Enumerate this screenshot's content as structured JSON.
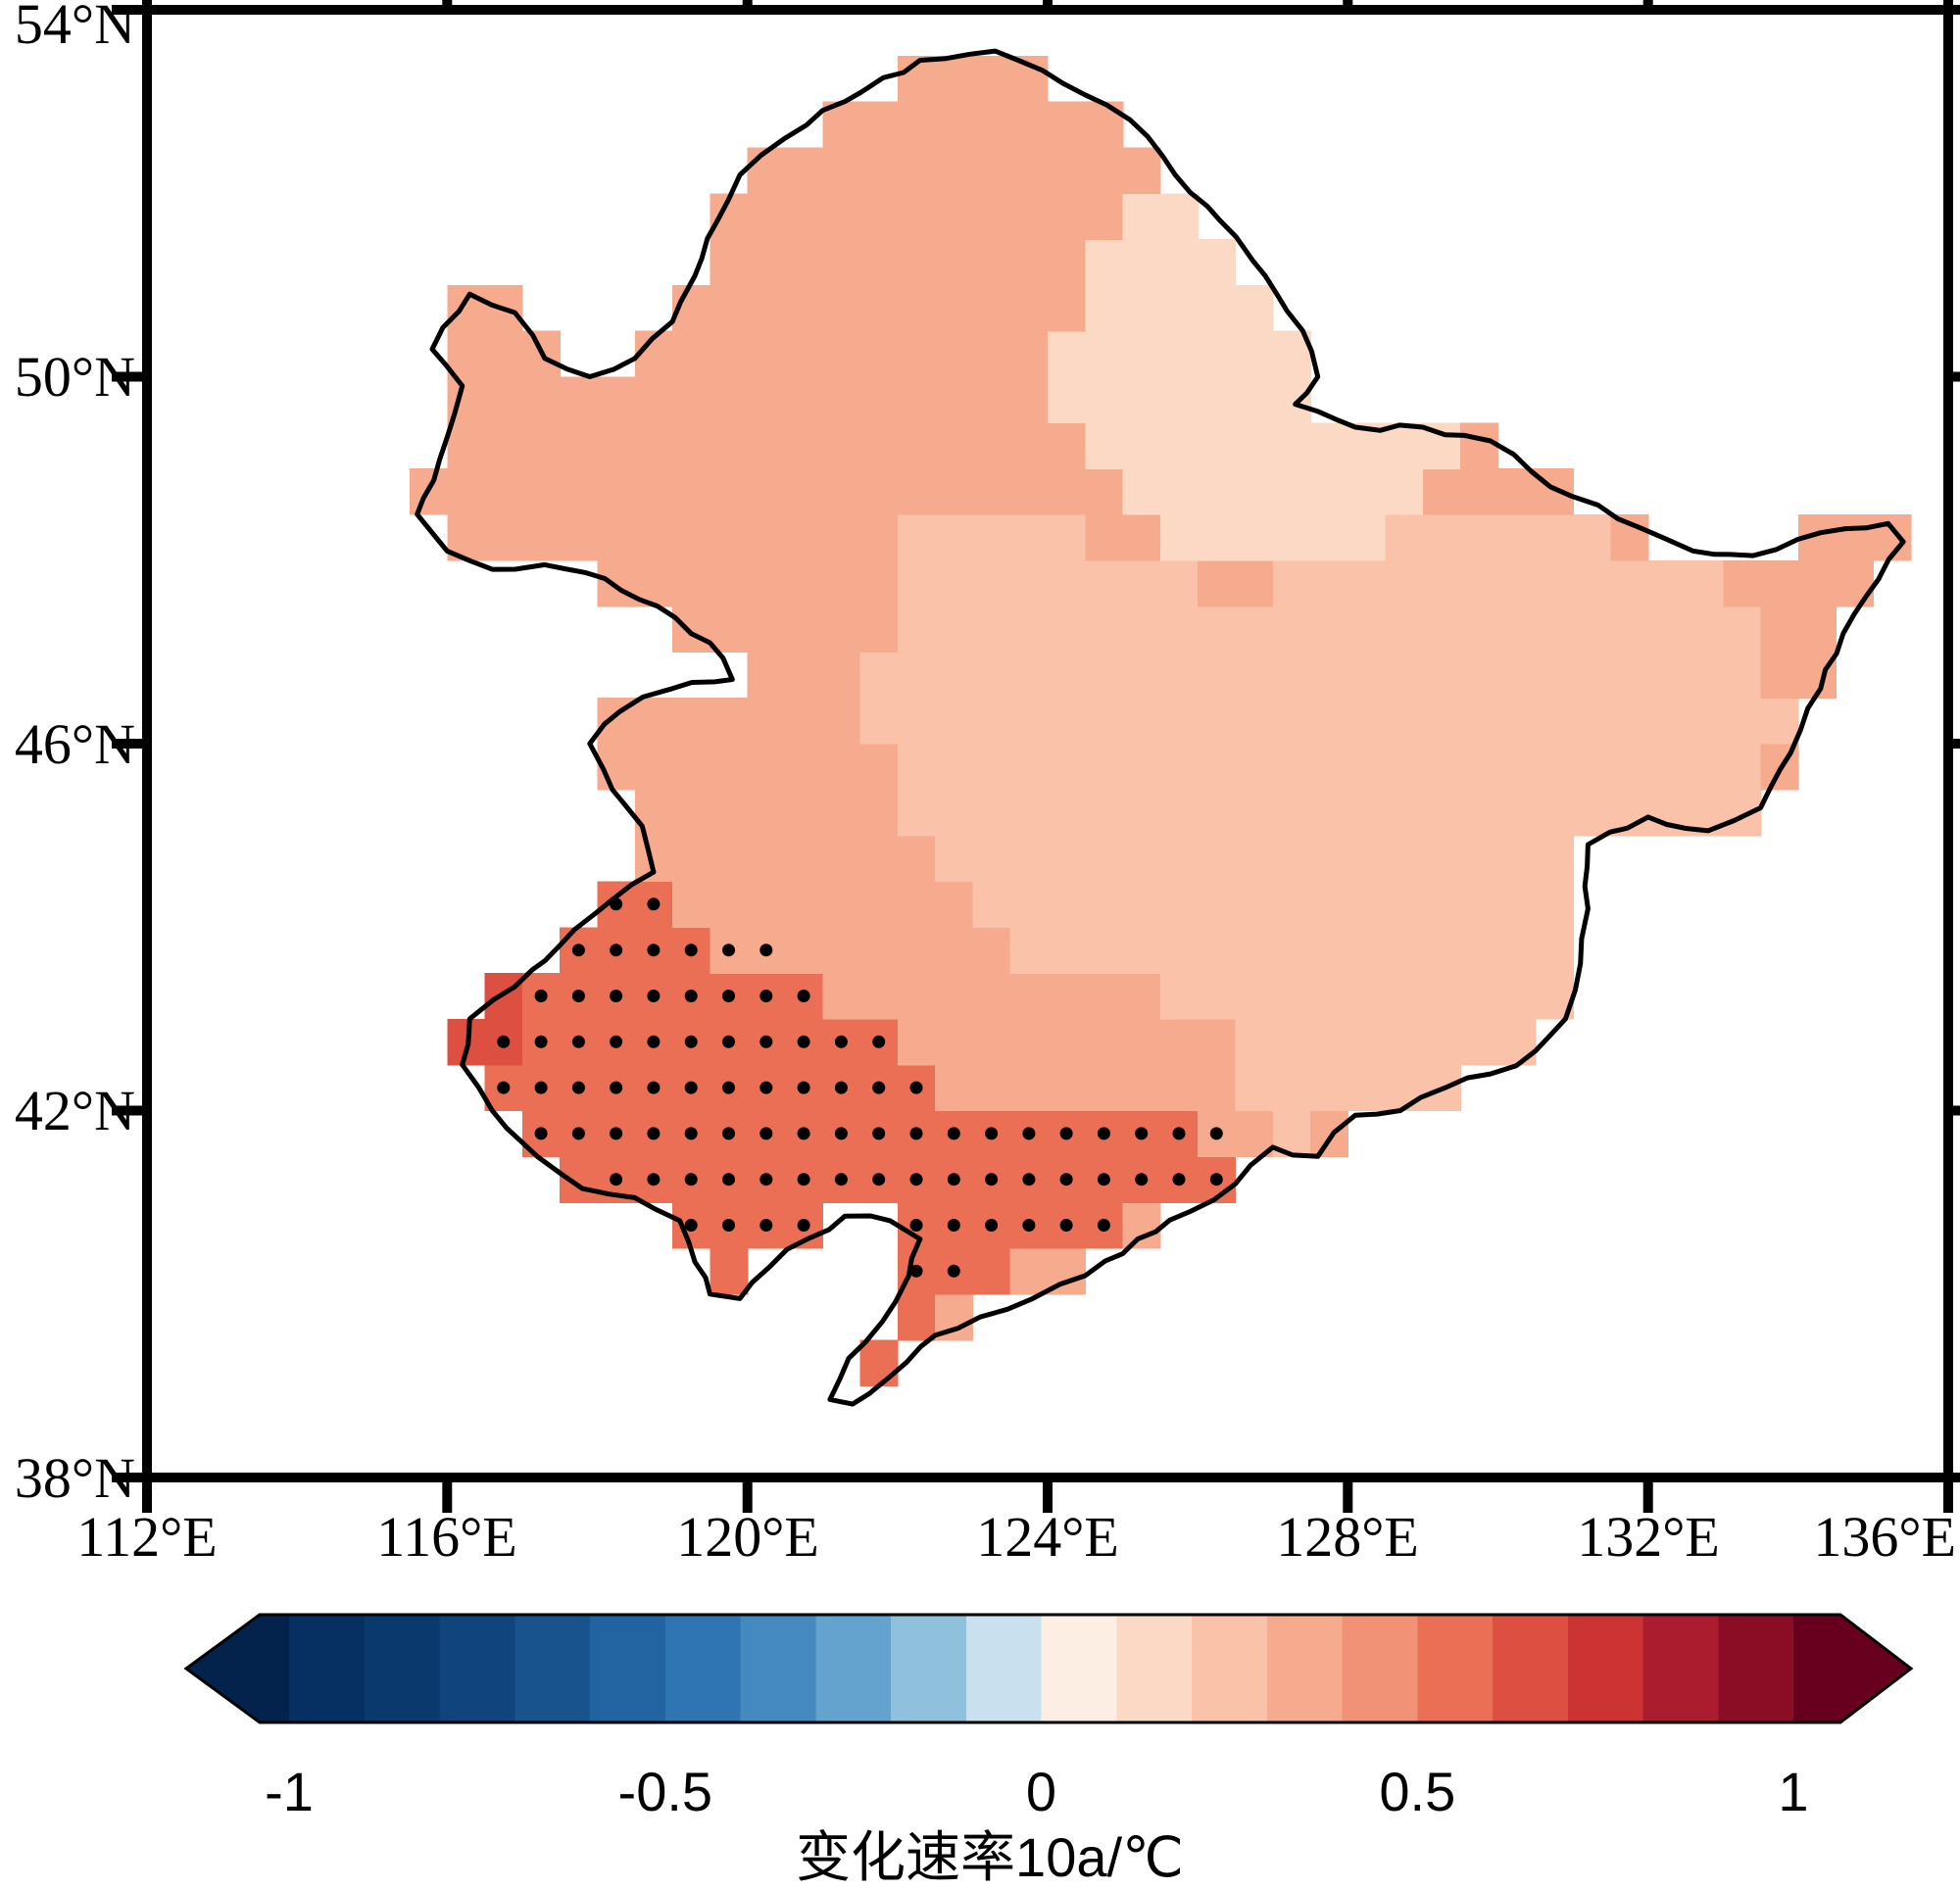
{
  "axes": {
    "lat_ticks": [
      {
        "value": 54,
        "label": "54°N"
      },
      {
        "value": 50,
        "label": "50°N"
      },
      {
        "value": 46,
        "label": "46°N"
      },
      {
        "value": 42,
        "label": "42°N"
      },
      {
        "value": 38,
        "label": "38°N"
      }
    ],
    "lon_ticks": [
      {
        "value": 112,
        "label": "112°E"
      },
      {
        "value": 116,
        "label": "116°E"
      },
      {
        "value": 120,
        "label": "120°E"
      },
      {
        "value": 124,
        "label": "124°E"
      },
      {
        "value": 128,
        "label": "128°E"
      },
      {
        "value": 132,
        "label": "132°E"
      },
      {
        "value": 136,
        "label": "136°E"
      }
    ]
  },
  "colorbar": {
    "label": "变化速率10a/℃",
    "ticks": [
      "-1",
      "-0.5",
      "0",
      "0.5",
      "1"
    ],
    "tick_values": [
      -1,
      -0.5,
      0,
      0.5,
      1
    ],
    "vmin": -1,
    "vmax": 1,
    "under_color": "#03234c",
    "over_color": "#67001f",
    "colors": [
      "#053061",
      "#09396d",
      "#10447c",
      "#18538e",
      "#2263a1",
      "#2f74b3",
      "#4489c0",
      "#63a3ce",
      "#8fc1dd",
      "#c9e1ee",
      "#fdeee4",
      "#fcd9c5",
      "#f9c2a9",
      "#f6aa8e",
      "#f19175",
      "#ea6f55",
      "#dd4f40",
      "#cb3232",
      "#ab1d2e",
      "#8a0c25"
    ]
  },
  "chart_data": {
    "type": "heatmap",
    "variable_label": "变化速率10a/℃",
    "lon_range": [
      112,
      136
    ],
    "lat_range": [
      38,
      54
    ],
    "grid_resolution_deg": 0.5,
    "base_value": 0.38,
    "region_boundary_lonlat": [
      [
        115.6,
        48.5
      ],
      [
        115.9,
        49.1
      ],
      [
        116.1,
        49.6
      ],
      [
        116.2,
        49.9
      ],
      [
        115.8,
        50.3
      ],
      [
        116.3,
        50.9
      ],
      [
        116.9,
        50.7
      ],
      [
        117.3,
        50.2
      ],
      [
        117.9,
        50.0
      ],
      [
        118.5,
        50.2
      ],
      [
        119.0,
        50.6
      ],
      [
        119.3,
        51.1
      ],
      [
        119.6,
        51.7
      ],
      [
        119.9,
        52.2
      ],
      [
        120.5,
        52.6
      ],
      [
        121.3,
        53.0
      ],
      [
        122.3,
        53.45
      ],
      [
        123.3,
        53.55
      ],
      [
        124.2,
        53.2
      ],
      [
        125.1,
        52.8
      ],
      [
        125.7,
        52.2
      ],
      [
        126.3,
        51.7
      ],
      [
        126.9,
        51.1
      ],
      [
        127.4,
        50.5
      ],
      [
        127.6,
        50.0
      ],
      [
        127.3,
        49.7
      ],
      [
        128.1,
        49.45
      ],
      [
        129.0,
        49.45
      ],
      [
        129.9,
        49.3
      ],
      [
        130.7,
        48.8
      ],
      [
        131.6,
        48.45
      ],
      [
        132.6,
        48.1
      ],
      [
        133.4,
        48.05
      ],
      [
        134.3,
        48.3
      ],
      [
        135.2,
        48.4
      ],
      [
        135.4,
        48.2
      ],
      [
        134.9,
        47.6
      ],
      [
        134.6,
        47.2
      ],
      [
        134.3,
        46.6
      ],
      [
        133.9,
        45.9
      ],
      [
        133.5,
        45.3
      ],
      [
        132.8,
        45.05
      ],
      [
        132.0,
        45.2
      ],
      [
        131.2,
        44.9
      ],
      [
        131.2,
        44.2
      ],
      [
        131.1,
        43.6
      ],
      [
        130.9,
        43.0
      ],
      [
        130.5,
        42.65
      ],
      [
        129.9,
        42.4
      ],
      [
        129.3,
        42.25
      ],
      [
        128.7,
        42.0
      ],
      [
        128.1,
        41.95
      ],
      [
        127.6,
        41.5
      ],
      [
        127.0,
        41.6
      ],
      [
        126.5,
        41.2
      ],
      [
        125.9,
        40.9
      ],
      [
        125.2,
        40.6
      ],
      [
        124.5,
        40.2
      ],
      [
        123.8,
        39.95
      ],
      [
        123.1,
        39.75
      ],
      [
        122.5,
        39.55
      ],
      [
        121.9,
        39.1
      ],
      [
        121.4,
        38.8
      ],
      [
        121.1,
        38.85
      ],
      [
        121.35,
        39.3
      ],
      [
        121.8,
        39.7
      ],
      [
        122.15,
        40.2
      ],
      [
        122.3,
        40.6
      ],
      [
        121.9,
        40.8
      ],
      [
        121.3,
        40.85
      ],
      [
        120.8,
        40.6
      ],
      [
        120.3,
        40.3
      ],
      [
        119.9,
        39.95
      ],
      [
        119.5,
        40.0
      ],
      [
        119.3,
        40.35
      ],
      [
        119.1,
        40.8
      ],
      [
        118.5,
        41.05
      ],
      [
        117.8,
        41.15
      ],
      [
        117.2,
        41.5
      ],
      [
        116.6,
        42.0
      ],
      [
        116.2,
        42.5
      ],
      [
        116.3,
        43.0
      ],
      [
        116.9,
        43.35
      ],
      [
        117.5,
        43.8
      ],
      [
        118.2,
        44.3
      ],
      [
        118.75,
        44.6
      ],
      [
        118.6,
        45.1
      ],
      [
        118.2,
        45.5
      ],
      [
        117.9,
        46.0
      ],
      [
        118.3,
        46.35
      ],
      [
        119.0,
        46.6
      ],
      [
        119.8,
        46.7
      ],
      [
        119.5,
        47.1
      ],
      [
        118.8,
        47.5
      ],
      [
        118.1,
        47.8
      ],
      [
        117.3,
        47.95
      ],
      [
        116.6,
        47.9
      ],
      [
        116.0,
        48.1
      ]
    ],
    "zones": [
      {
        "name": "east-lighter",
        "value": 0.28,
        "polygon": [
          [
            122.5,
            48.6
          ],
          [
            124.0,
            48.4
          ],
          [
            125.0,
            48.0
          ],
          [
            126.4,
            47.7
          ],
          [
            127.9,
            47.9
          ],
          [
            129.2,
            48.6
          ],
          [
            130.3,
            48.6
          ],
          [
            131.5,
            48.2
          ],
          [
            133.0,
            47.9
          ],
          [
            133.6,
            47.0
          ],
          [
            133.9,
            46.0
          ],
          [
            133.3,
            45.1
          ],
          [
            132.0,
            45.1
          ],
          [
            131.1,
            44.8
          ],
          [
            131.1,
            43.6
          ],
          [
            130.8,
            42.9
          ],
          [
            129.9,
            42.5
          ],
          [
            128.9,
            42.1
          ],
          [
            128.0,
            42.0
          ],
          [
            127.5,
            41.6
          ],
          [
            126.9,
            41.7
          ],
          [
            126.6,
            42.2
          ],
          [
            126.3,
            43.0
          ],
          [
            125.4,
            43.4
          ],
          [
            124.4,
            43.3
          ],
          [
            123.5,
            43.6
          ],
          [
            123.0,
            44.3
          ],
          [
            122.4,
            44.7
          ],
          [
            122.0,
            45.5
          ],
          [
            121.6,
            46.3
          ],
          [
            121.8,
            47.2
          ],
          [
            122.0,
            48.0
          ]
        ]
      },
      {
        "name": "north-pale",
        "value": 0.13,
        "polygon": [
          [
            124.6,
            51.7
          ],
          [
            126.0,
            52.0
          ],
          [
            127.3,
            51.6
          ],
          [
            128.4,
            50.9
          ],
          [
            129.3,
            50.0
          ],
          [
            129.5,
            49.0
          ],
          [
            128.7,
            48.3
          ],
          [
            127.3,
            47.9
          ],
          [
            126.0,
            48.0
          ],
          [
            125.0,
            48.5
          ],
          [
            124.3,
            49.3
          ],
          [
            124.1,
            50.3
          ]
        ]
      },
      {
        "name": "southwest-dark",
        "value": 0.52,
        "polygon": [
          [
            116.3,
            43.4
          ],
          [
            117.0,
            43.7
          ],
          [
            117.6,
            44.05
          ],
          [
            118.3,
            44.45
          ],
          [
            119.1,
            44.3
          ],
          [
            119.25,
            43.8
          ],
          [
            120.2,
            43.7
          ],
          [
            120.9,
            43.2
          ],
          [
            121.9,
            42.8
          ],
          [
            122.5,
            42.4
          ],
          [
            122.6,
            41.9
          ],
          [
            123.6,
            41.85
          ],
          [
            124.8,
            41.8
          ],
          [
            125.9,
            41.75
          ],
          [
            126.5,
            41.75
          ],
          [
            126.5,
            41.2
          ],
          [
            125.6,
            41.0
          ],
          [
            124.8,
            40.55
          ],
          [
            124.0,
            40.3
          ],
          [
            123.2,
            40.2
          ],
          [
            122.6,
            39.8
          ],
          [
            122.1,
            39.2
          ],
          [
            121.3,
            38.7
          ],
          [
            121.15,
            39.2
          ],
          [
            121.6,
            40.0
          ],
          [
            121.2,
            40.3
          ],
          [
            120.5,
            40.25
          ],
          [
            119.8,
            40.05
          ],
          [
            119.3,
            40.4
          ],
          [
            119.0,
            40.9
          ],
          [
            118.3,
            41.1
          ],
          [
            117.6,
            41.25
          ],
          [
            116.9,
            41.8
          ],
          [
            116.4,
            42.4
          ],
          [
            116.2,
            42.9
          ]
        ]
      },
      {
        "name": "southwest-darkest",
        "value": 0.63,
        "polygon": [
          [
            116.2,
            43.2
          ],
          [
            116.9,
            43.4
          ],
          [
            117.2,
            43.0
          ],
          [
            116.8,
            42.55
          ],
          [
            116.3,
            42.6
          ],
          [
            116.15,
            42.9
          ]
        ]
      }
    ],
    "stipple_polygon": [
      [
        116.4,
        42.5
      ],
      [
        116.9,
        41.9
      ],
      [
        117.6,
        41.3
      ],
      [
        118.4,
        41.1
      ],
      [
        119.1,
        40.8
      ],
      [
        119.5,
        40.4
      ],
      [
        120.2,
        40.35
      ],
      [
        120.9,
        40.6
      ],
      [
        121.6,
        40.2
      ],
      [
        122.3,
        39.9
      ],
      [
        122.9,
        40.3
      ],
      [
        123.6,
        40.75
      ],
      [
        124.4,
        40.45
      ],
      [
        125.1,
        40.75
      ],
      [
        125.9,
        41.0
      ],
      [
        126.5,
        41.3
      ],
      [
        126.5,
        41.95
      ],
      [
        125.5,
        42.0
      ],
      [
        124.3,
        42.0
      ],
      [
        123.2,
        42.0
      ],
      [
        122.6,
        42.3
      ],
      [
        122.2,
        42.8
      ],
      [
        121.3,
        43.2
      ],
      [
        120.5,
        43.7
      ],
      [
        119.6,
        43.9
      ],
      [
        119.0,
        44.35
      ],
      [
        118.2,
        44.3
      ],
      [
        117.5,
        43.8
      ],
      [
        116.9,
        43.3
      ],
      [
        116.3,
        43.0
      ]
    ]
  }
}
